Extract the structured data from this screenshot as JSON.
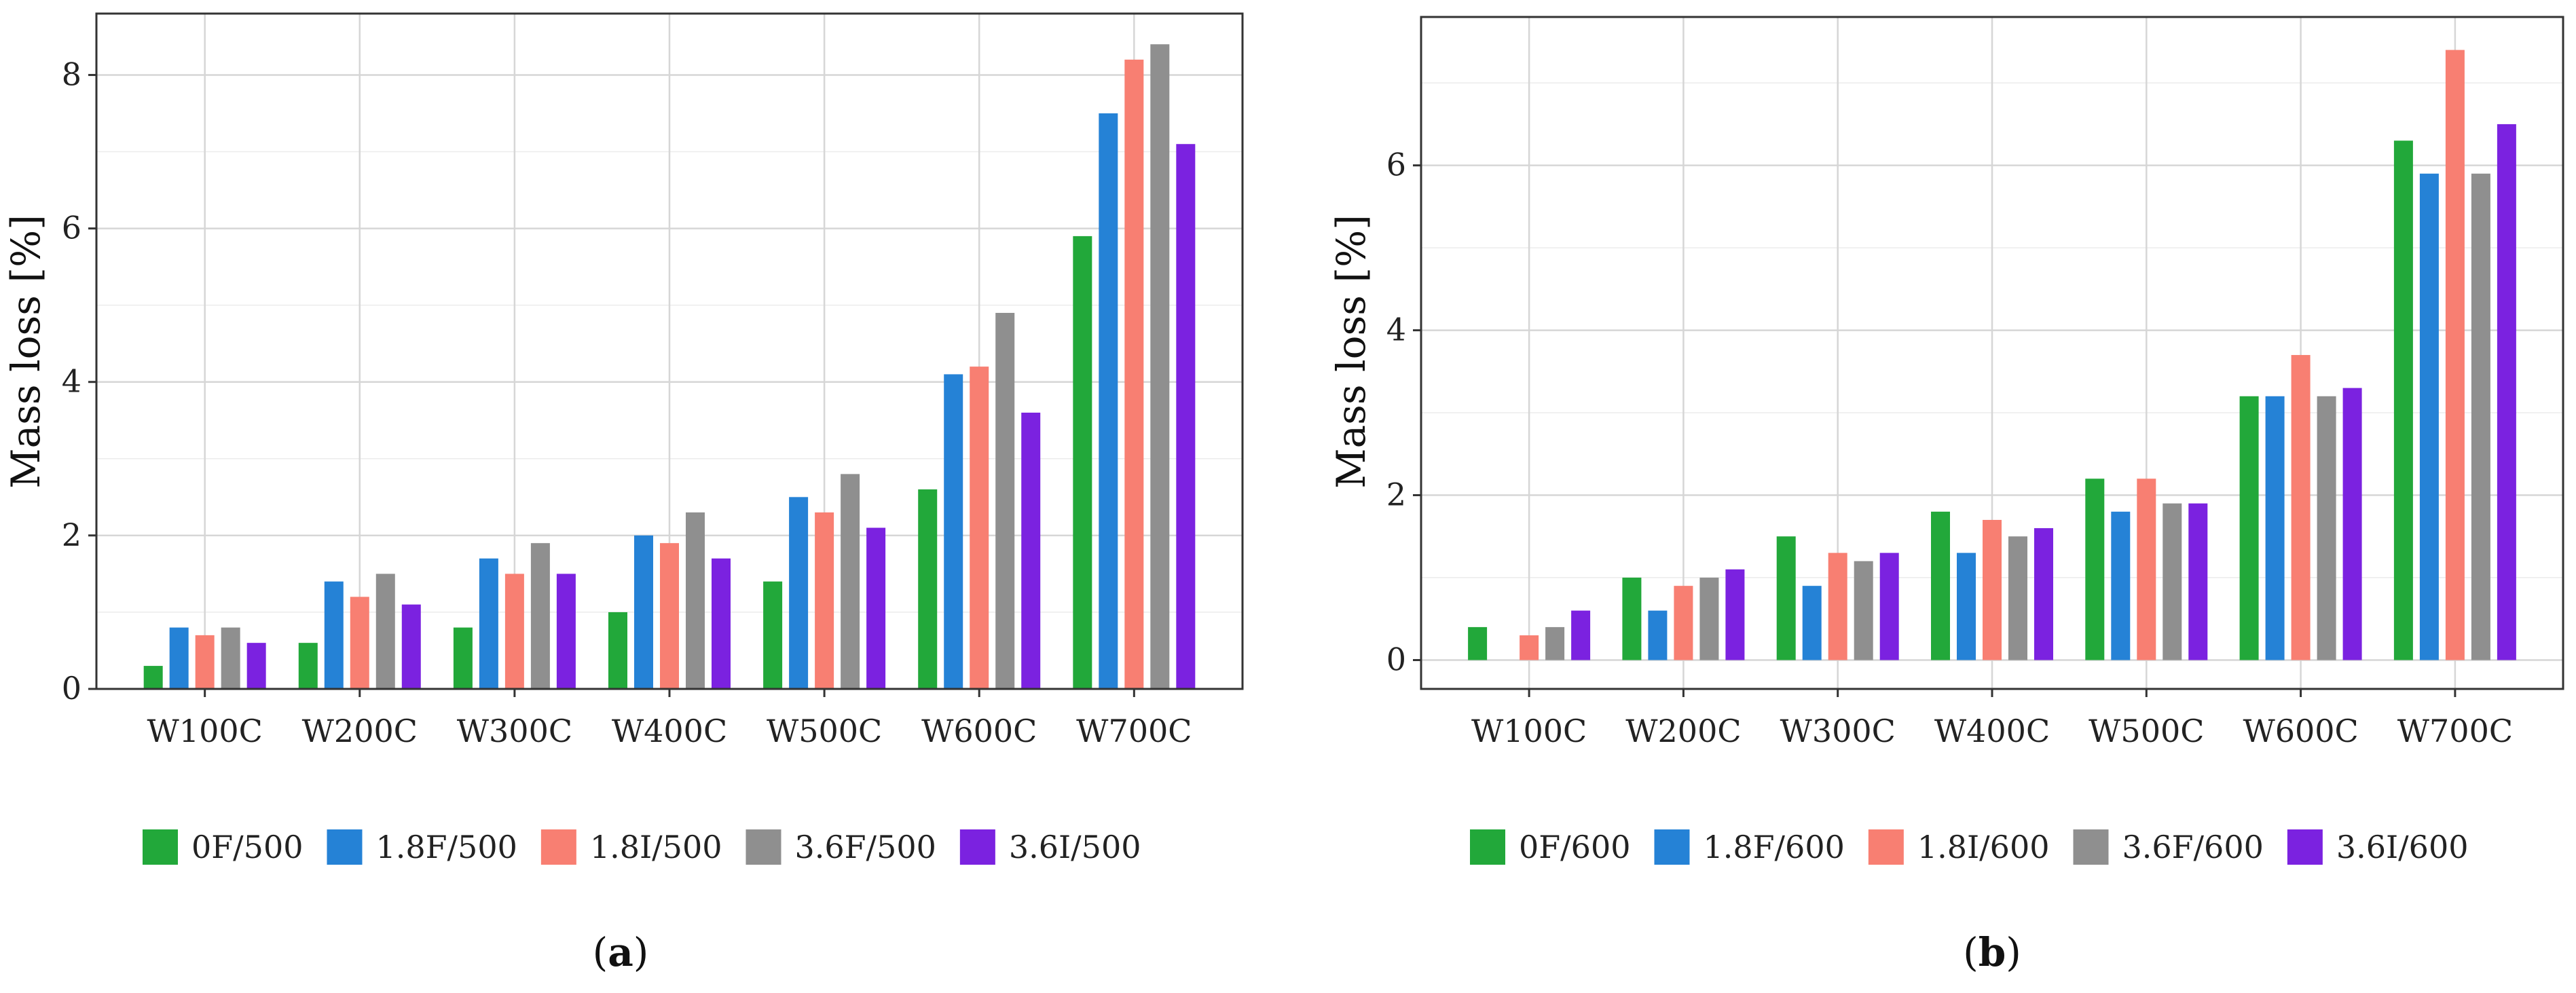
{
  "chart_data": [
    {
      "type": "bar",
      "panel": "(a)",
      "caption_letter": "a",
      "ylabel": "Mass loss [%]",
      "xlabel": "",
      "ylim": [
        0,
        8.8
      ],
      "yticks": [
        0,
        2,
        4,
        6,
        8
      ],
      "grid": true,
      "legend_position": "bottom",
      "categories": [
        "W100C",
        "W200C",
        "W300C",
        "W400C",
        "W500C",
        "W600C",
        "W700C"
      ],
      "series": [
        {
          "name": "0F/500",
          "color": "#22a83a",
          "values": [
            0.3,
            0.6,
            0.8,
            1.0,
            1.4,
            2.6,
            5.9
          ]
        },
        {
          "name": "1.8F/500",
          "color": "#2582d6",
          "values": [
            0.8,
            1.4,
            1.7,
            2.0,
            2.5,
            4.1,
            7.5
          ]
        },
        {
          "name": "1.8I/500",
          "color": "#f87f72",
          "values": [
            0.7,
            1.2,
            1.5,
            1.9,
            2.3,
            4.2,
            8.2
          ]
        },
        {
          "name": "3.6F/500",
          "color": "#8f8f8f",
          "values": [
            0.8,
            1.5,
            1.9,
            2.3,
            2.8,
            4.9,
            8.4
          ]
        },
        {
          "name": "3.6I/500",
          "color": "#7b22e0",
          "values": [
            0.6,
            1.1,
            1.5,
            1.7,
            2.1,
            3.6,
            7.1
          ]
        }
      ]
    },
    {
      "type": "bar",
      "panel": "(b)",
      "caption_letter": "b",
      "ylabel": "Mass loss [%]",
      "xlabel": "",
      "ylim": [
        -0.35,
        7.8
      ],
      "yticks": [
        0,
        2,
        4,
        6
      ],
      "grid": true,
      "legend_position": "bottom",
      "categories": [
        "W100C",
        "W200C",
        "W300C",
        "W400C",
        "W500C",
        "W600C",
        "W700C"
      ],
      "series": [
        {
          "name": "0F/600",
          "color": "#22a83a",
          "values": [
            0.4,
            1.0,
            1.5,
            1.8,
            2.2,
            3.2,
            6.3
          ]
        },
        {
          "name": "1.8F/600",
          "color": "#2582d6",
          "values": [
            0.0,
            0.6,
            0.9,
            1.3,
            1.8,
            3.2,
            5.9
          ]
        },
        {
          "name": "1.8I/600",
          "color": "#f87f72",
          "values": [
            0.3,
            0.9,
            1.3,
            1.7,
            2.2,
            3.7,
            7.4
          ]
        },
        {
          "name": "3.6F/600",
          "color": "#8f8f8f",
          "values": [
            0.4,
            1.0,
            1.2,
            1.5,
            1.9,
            3.2,
            5.9
          ]
        },
        {
          "name": "3.6I/600",
          "color": "#7b22e0",
          "values": [
            0.6,
            1.1,
            1.3,
            1.6,
            1.9,
            3.3,
            6.5
          ]
        }
      ]
    }
  ]
}
